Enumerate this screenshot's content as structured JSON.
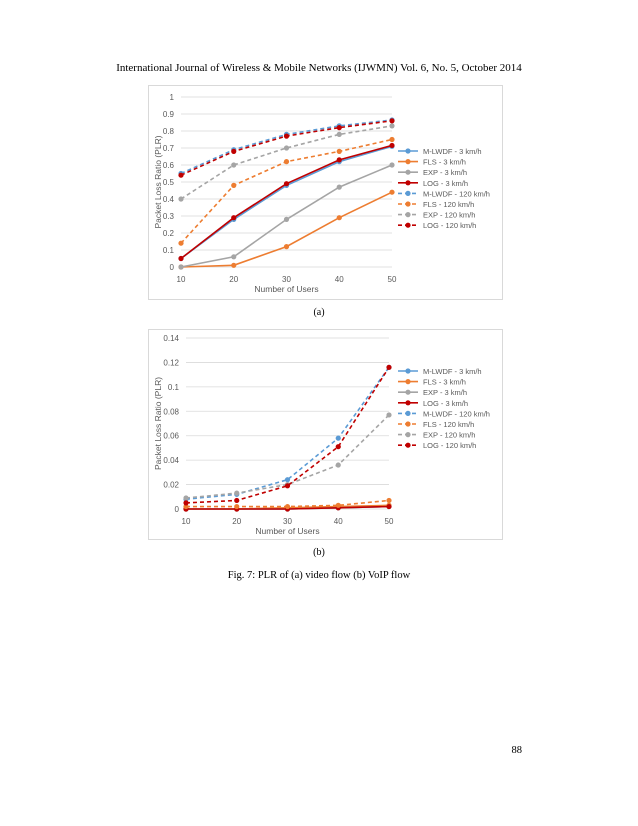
{
  "header": {
    "journal_line": "International Journal of Wireless & Mobile Networks (IJWMN) Vol. 6, No. 5, October 2014"
  },
  "chart_data": [
    {
      "type": "line",
      "caption": "(a)",
      "xlabel": "Number of Users",
      "ylabel": "Packet Loss Ratio (PLR)",
      "x": [
        10,
        20,
        30,
        40,
        50
      ],
      "ylim": [
        0,
        1
      ],
      "yticks": [
        "0",
        "0.1",
        "0.2",
        "0.3",
        "0.4",
        "0.5",
        "0.6",
        "0.7",
        "0.8",
        "0.9",
        "1"
      ],
      "ytick_values": [
        0,
        0.1,
        0.2,
        0.3,
        0.4,
        0.5,
        0.6,
        0.7,
        0.8,
        0.9,
        1
      ],
      "xticks": [
        "10",
        "20",
        "30",
        "40",
        "50"
      ],
      "grid": true,
      "legend": "right",
      "series": [
        {
          "name": "M-LWDF - 3 km/h",
          "color": "#5b9bd5",
          "dash": false,
          "values": [
            0.05,
            0.28,
            0.48,
            0.62,
            0.71
          ]
        },
        {
          "name": "FLS - 3 km/h",
          "color": "#ed7d31",
          "dash": false,
          "values": [
            0.0,
            0.01,
            0.12,
            0.29,
            0.44
          ]
        },
        {
          "name": "EXP - 3 km/h",
          "color": "#a5a5a5",
          "dash": false,
          "values": [
            0.0,
            0.06,
            0.28,
            0.47,
            0.6
          ]
        },
        {
          "name": "LOG - 3 km/h",
          "color": "#c00000",
          "dash": false,
          "values": [
            0.05,
            0.29,
            0.49,
            0.63,
            0.715
          ]
        },
        {
          "name": "M-LWDF - 120 km/h",
          "color": "#5b9bd5",
          "dash": true,
          "values": [
            0.55,
            0.69,
            0.78,
            0.83,
            0.865
          ]
        },
        {
          "name": "FLS - 120 km/h",
          "color": "#ed7d31",
          "dash": true,
          "values": [
            0.14,
            0.48,
            0.62,
            0.68,
            0.75
          ]
        },
        {
          "name": "EXP - 120 km/h",
          "color": "#a5a5a5",
          "dash": true,
          "values": [
            0.4,
            0.6,
            0.7,
            0.78,
            0.83
          ]
        },
        {
          "name": "LOG - 120 km/h",
          "color": "#c00000",
          "dash": true,
          "values": [
            0.54,
            0.68,
            0.77,
            0.82,
            0.86
          ]
        }
      ]
    },
    {
      "type": "line",
      "caption": "(b)",
      "xlabel": "Number of Users",
      "ylabel": "Packet Loss Ratio (PLR)",
      "x": [
        10,
        20,
        30,
        40,
        50
      ],
      "ylim": [
        0,
        0.14
      ],
      "yticks": [
        "0",
        "0.02",
        "0.04",
        "0.06",
        "0.08",
        "0.1",
        "0.12",
        "0.14"
      ],
      "ytick_values": [
        0,
        0.02,
        0.04,
        0.06,
        0.08,
        0.1,
        0.12,
        0.14
      ],
      "xticks": [
        "10",
        "20",
        "30",
        "40",
        "50"
      ],
      "grid": true,
      "legend": "right",
      "series": [
        {
          "name": "M-LWDF - 3 km/h",
          "color": "#5b9bd5",
          "dash": false,
          "values": [
            0.0,
            0.0,
            0.0,
            0.001,
            0.002
          ]
        },
        {
          "name": "FLS - 3 km/h",
          "color": "#ed7d31",
          "dash": false,
          "values": [
            0.0,
            0.0,
            0.001,
            0.002,
            0.003
          ]
        },
        {
          "name": "EXP - 3 km/h",
          "color": "#a5a5a5",
          "dash": false,
          "values": [
            0.0,
            0.0,
            0.0,
            0.001,
            0.002
          ]
        },
        {
          "name": "LOG - 3 km/h",
          "color": "#c00000",
          "dash": false,
          "values": [
            0.0,
            0.0,
            0.0,
            0.001,
            0.002
          ]
        },
        {
          "name": "M-LWDF - 120 km/h",
          "color": "#5b9bd5",
          "dash": true,
          "values": [
            0.008,
            0.012,
            0.024,
            0.058,
            0.116
          ]
        },
        {
          "name": "FLS - 120 km/h",
          "color": "#ed7d31",
          "dash": true,
          "values": [
            0.002,
            0.002,
            0.002,
            0.003,
            0.007
          ]
        },
        {
          "name": "EXP - 120 km/h",
          "color": "#a5a5a5",
          "dash": true,
          "values": [
            0.009,
            0.013,
            0.02,
            0.036,
            0.077
          ]
        },
        {
          "name": "LOG - 120 km/h",
          "color": "#c00000",
          "dash": true,
          "values": [
            0.005,
            0.007,
            0.019,
            0.051,
            0.116
          ]
        }
      ]
    }
  ],
  "figure_caption": "Fig. 7: PLR of (a) video flow (b) VoIP flow",
  "page_number": "88"
}
